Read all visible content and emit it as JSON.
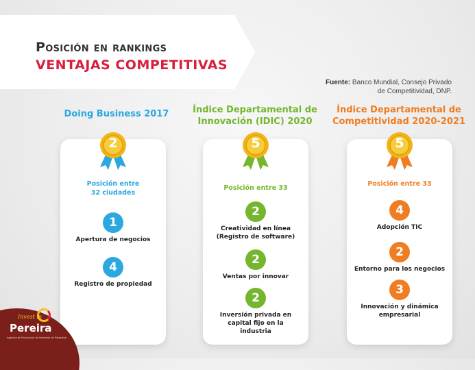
{
  "header": {
    "title_line1": "Posición en rankings",
    "title_line2": "VENTAJAS COMPETITIVAS",
    "source_label": "Fuente:",
    "source_text_1": "Banco Mundial, Consejo Privado",
    "source_text_2": "de Competitividad, DNP."
  },
  "colors": {
    "blue": "#2ba8df",
    "green": "#74b62e",
    "orange": "#ef7d22",
    "red": "#d71f3b",
    "gold": "#f2b517"
  },
  "columns": [
    {
      "title_1": "Doing Business 2017",
      "title_2": "",
      "medal_rank": "2",
      "position_1": "Posición entre",
      "position_2": "32 ciudades",
      "items": [
        {
          "rank": "1",
          "label_1": "Apertura de negocios",
          "label_2": "",
          "label_3": ""
        },
        {
          "rank": "4",
          "label_1": "Registro de propiedad",
          "label_2": "",
          "label_3": ""
        }
      ]
    },
    {
      "title_1": "Índice Departamental de",
      "title_2": "Innovación (IDIC) 2020",
      "medal_rank": "5",
      "position_1": "Posición entre 33",
      "position_2": "",
      "items": [
        {
          "rank": "2",
          "label_1": "Creatividad en línea",
          "label_2": "(Registro de software)",
          "label_3": ""
        },
        {
          "rank": "2",
          "label_1": "Ventas por innovar",
          "label_2": "",
          "label_3": ""
        },
        {
          "rank": "2",
          "label_1": "Inversión privada en",
          "label_2": "capital fijo en la",
          "label_3": "industria"
        }
      ]
    },
    {
      "title_1": "Índice Departamental de",
      "title_2": "Competitividad 2020-2021",
      "medal_rank": "5",
      "position_1": "Posición entre 33",
      "position_2": "",
      "items": [
        {
          "rank": "4",
          "label_1": "Adopción TIC",
          "label_2": "",
          "label_3": ""
        },
        {
          "rank": "2",
          "label_1": "Entorno para los negocios",
          "label_2": "",
          "label_3": ""
        },
        {
          "rank": "3",
          "label_1": "Innovación y dinámica",
          "label_2": "empresarial",
          "label_3": ""
        }
      ]
    }
  ],
  "logo": {
    "invest": "Invest in",
    "name": "Pereira",
    "tagline": "Agencia de Promoción de Inversión de Risaralda"
  }
}
